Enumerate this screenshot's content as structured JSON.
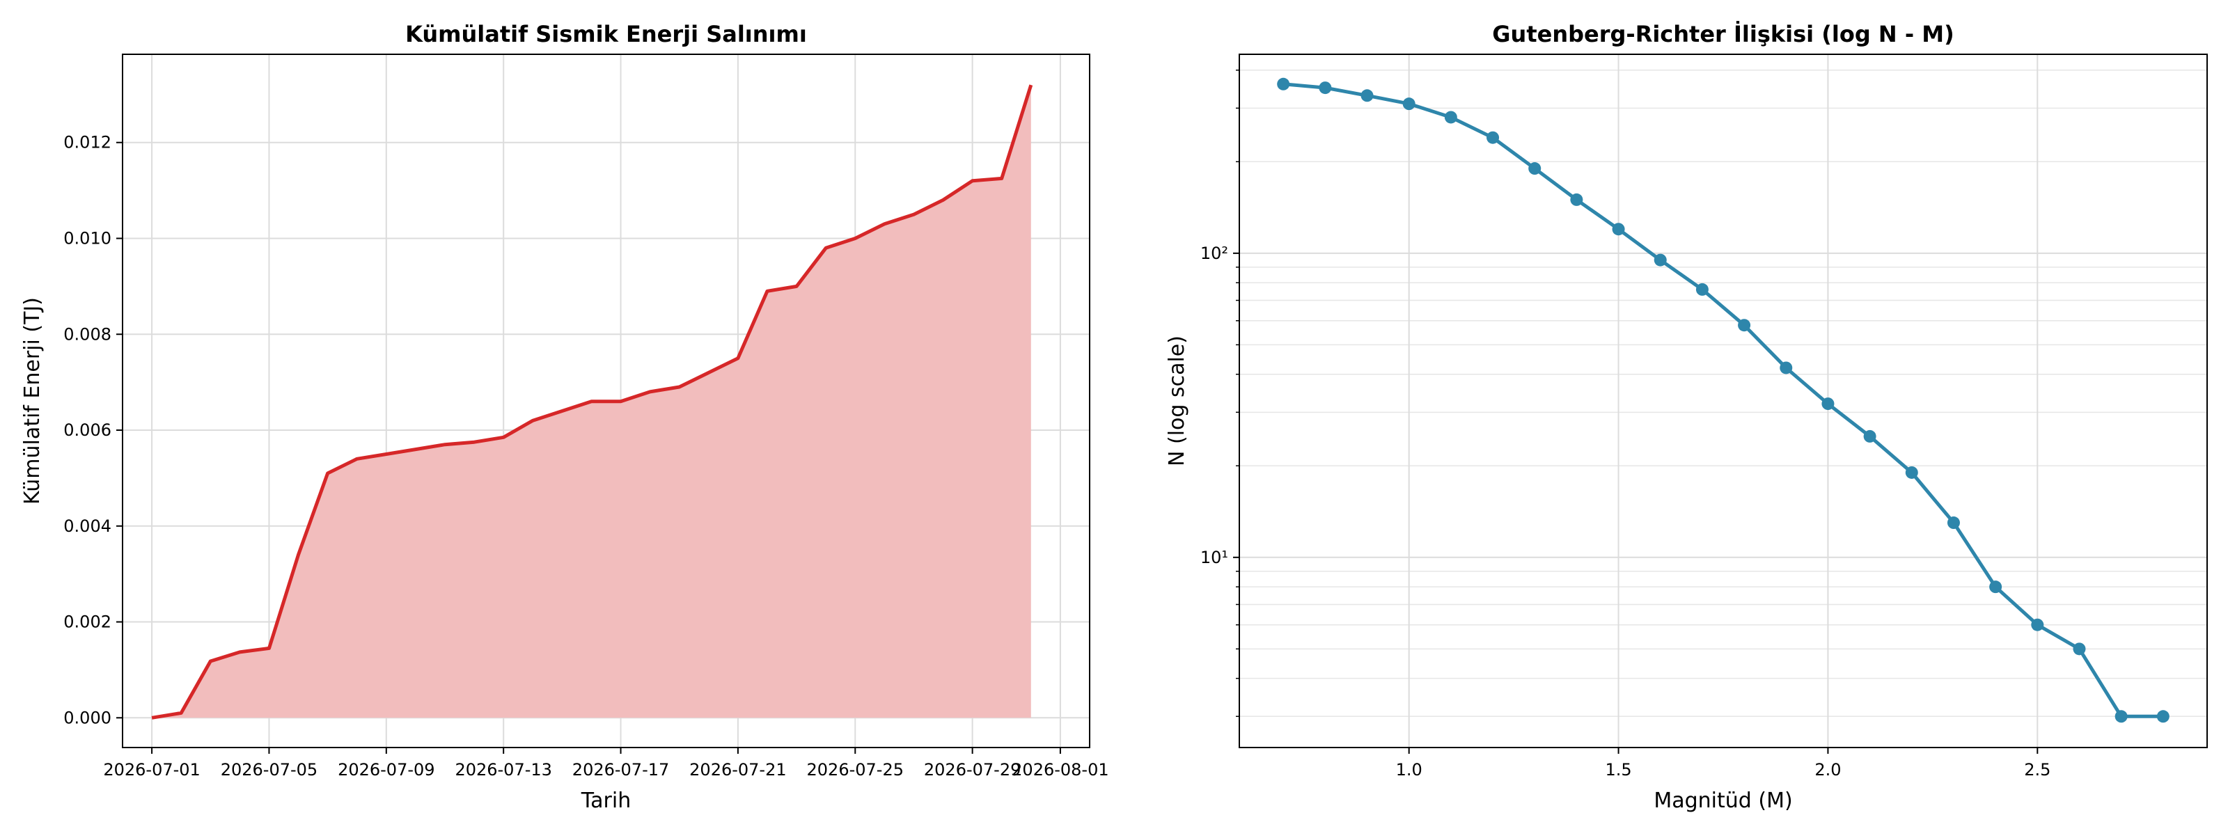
{
  "chart_data": [
    {
      "type": "line",
      "fill": true,
      "title": "Kümülatif Sismik Enerji Salınımı",
      "xlabel": "Tarih",
      "ylabel": "Kümülatif Enerji (TJ)",
      "color": "#d62728",
      "fill_color": "#f2bdbd",
      "grid": true,
      "x": [
        "2026-07-01",
        "2026-07-02",
        "2026-07-03",
        "2026-07-04",
        "2026-07-05",
        "2026-07-06",
        "2026-07-07",
        "2026-07-08",
        "2026-07-09",
        "2026-07-10",
        "2026-07-11",
        "2026-07-12",
        "2026-07-13",
        "2026-07-14",
        "2026-07-15",
        "2026-07-16",
        "2026-07-17",
        "2026-07-18",
        "2026-07-19",
        "2026-07-20",
        "2026-07-21",
        "2026-07-22",
        "2026-07-23",
        "2026-07-24",
        "2026-07-25",
        "2026-07-26",
        "2026-07-27",
        "2026-07-28",
        "2026-07-29",
        "2026-07-30",
        "2026-07-31"
      ],
      "values": [
        0,
        0.0001,
        0.00118,
        0.00137,
        0.00145,
        0.0034,
        0.0051,
        0.0054,
        0.0055,
        0.0056,
        0.0057,
        0.00575,
        0.00585,
        0.0062,
        0.0064,
        0.0066,
        0.0066,
        0.0068,
        0.0069,
        0.0072,
        0.0075,
        0.0089,
        0.009,
        0.0098,
        0.01,
        0.0103,
        0.0105,
        0.0108,
        0.0112,
        0.01125,
        0.0132
      ],
      "xlim": [
        "2026-06-30",
        "2026-08-02"
      ],
      "xticks": [
        "2026-07-01",
        "2026-07-05",
        "2026-07-09",
        "2026-07-13",
        "2026-07-17",
        "2026-07-21",
        "2026-07-25",
        "2026-07-29",
        "2026-08-01"
      ],
      "ylim": [
        -0.00062,
        0.01384
      ],
      "yticks": [
        {
          "value": 0,
          "label": "0.000"
        },
        {
          "value": 0.002,
          "label": "0.002"
        },
        {
          "value": 0.004,
          "label": "0.004"
        },
        {
          "value": 0.006,
          "label": "0.006"
        },
        {
          "value": 0.008,
          "label": "0.008"
        },
        {
          "value": 0.01,
          "label": "0.010"
        },
        {
          "value": 0.012,
          "label": "0.012"
        }
      ]
    },
    {
      "type": "line",
      "log_y": true,
      "markers": true,
      "title": "Gutenberg-Richter İlişkisi (log N - M)",
      "xlabel": "Magnitüd (M)",
      "ylabel": "N (log scale)",
      "color": "#2e86ab",
      "grid": true,
      "x": [
        0.7,
        0.8,
        0.9,
        1.0,
        1.1,
        1.2,
        1.3,
        1.4,
        1.5,
        1.6,
        1.7,
        1.8,
        1.9,
        2.0,
        2.1,
        2.2,
        2.3,
        2.4,
        2.5,
        2.6,
        2.7,
        2.8
      ],
      "values": [
        360,
        350,
        330,
        310,
        280,
        240,
        190,
        150,
        120,
        95,
        76,
        58,
        42,
        32,
        25,
        19,
        13,
        8,
        6,
        5,
        3,
        3
      ],
      "xlim": [
        0.595,
        2.905
      ],
      "xticks": [
        {
          "value": 1,
          "label": "1.0"
        },
        {
          "value": 1.5,
          "label": "1.5"
        },
        {
          "value": 2,
          "label": "2.0"
        },
        {
          "value": 2.5,
          "label": "2.5"
        }
      ],
      "ylim": [
        2.37,
        451
      ],
      "yticks": [
        {
          "value": 10,
          "label": "10¹"
        },
        {
          "value": 100,
          "label": "10²"
        }
      ],
      "yminor": [
        3,
        4,
        5,
        6,
        7,
        8,
        9,
        20,
        30,
        40,
        50,
        60,
        70,
        80,
        90,
        200,
        300,
        400
      ]
    }
  ]
}
